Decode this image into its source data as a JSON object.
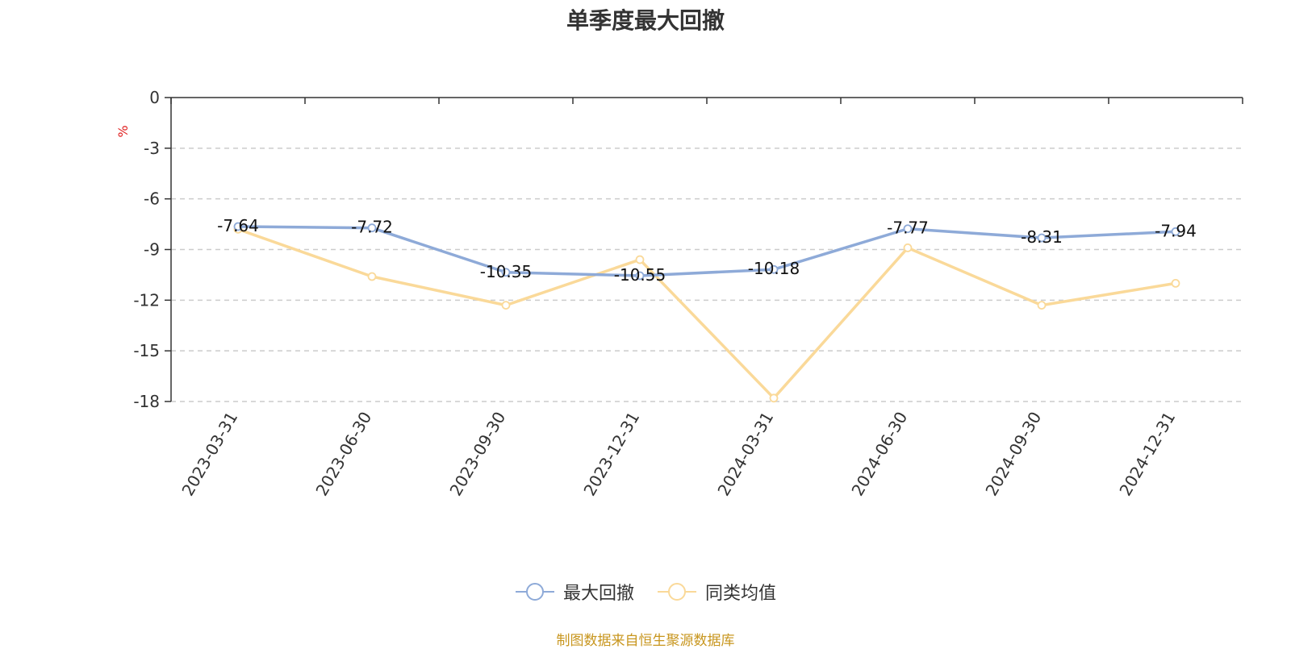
{
  "chart_data": {
    "type": "line",
    "title": "单季度最大回撤",
    "ylabel": "%",
    "xlabel": "",
    "ylim": [
      -18,
      0
    ],
    "yticks": [
      0,
      -3,
      -6,
      -9,
      -12,
      -15,
      -18
    ],
    "grid": true,
    "legend_position": "bottom",
    "categories": [
      "2023-03-31",
      "2023-06-30",
      "2023-09-30",
      "2023-12-31",
      "2024-03-31",
      "2024-06-30",
      "2024-09-30",
      "2024-12-31"
    ],
    "series": [
      {
        "name": "最大回撤",
        "color": "#8eaad8",
        "values": [
          -7.64,
          -7.72,
          -10.35,
          -10.55,
          -10.18,
          -7.77,
          -8.31,
          -7.94
        ],
        "show_labels": true
      },
      {
        "name": "同类均值",
        "color": "#fad999",
        "values": [
          -7.8,
          -10.6,
          -12.3,
          -9.6,
          -17.8,
          -8.9,
          -12.3,
          -11.0
        ],
        "show_labels": false
      }
    ]
  },
  "source_note": "制图数据来自恒生聚源数据库"
}
